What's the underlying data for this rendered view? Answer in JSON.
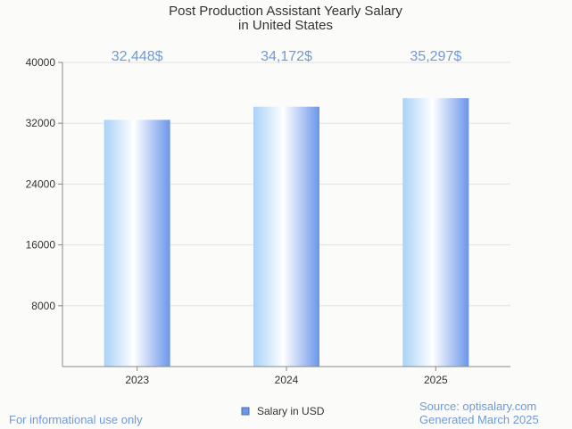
{
  "chart_data": {
    "type": "bar",
    "title_lines": [
      "Post Production Assistant Yearly Salary",
      "in United States"
    ],
    "categories": [
      "2023",
      "2024",
      "2025"
    ],
    "series": [
      {
        "name": "Salary in USD",
        "values": [
          32448,
          34172,
          35297
        ]
      }
    ],
    "data_labels": [
      "32,448$",
      "34,172$",
      "35,297$"
    ],
    "yticks": [
      8000,
      16000,
      24000,
      32000,
      40000
    ],
    "ylim": [
      0,
      40000
    ],
    "grid": true,
    "legend_position": "bottom-center"
  },
  "colors": {
    "bar_dark": "#6b96ea",
    "bar_light": "#ffffff",
    "bar_edge": "#a9d2f7",
    "label": "#6f9ad9",
    "grid": "#e2e2e2",
    "axis": "#888888"
  },
  "footer": {
    "disclaimer": "For informational use only",
    "source": "Source: optisalary.com",
    "generated": "Generated March 2025"
  }
}
